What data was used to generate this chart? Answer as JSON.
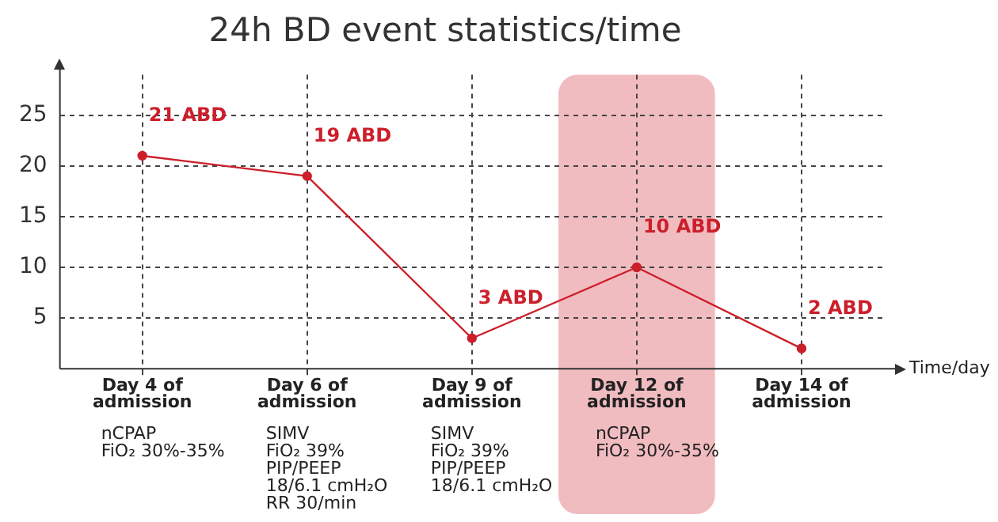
{
  "chart_data": {
    "type": "line",
    "title": "24h BD event statistics/time",
    "xlabel": "Time/day",
    "categories": [
      "Day 4 of admission",
      "Day 6 of admission",
      "Day 9 of admission",
      "Day 12 of admission",
      "Day 14 of admission"
    ],
    "series": [
      {
        "color": "#cc1f2b",
        "values": [
          21,
          19,
          3,
          10,
          2
        ],
        "value_labels": [
          "21 ABD",
          "19 ABD",
          "3 ABD",
          "10 ABD",
          "2 ABD"
        ]
      }
    ],
    "ylim": [
      0,
      29
    ],
    "yticks": [
      5,
      10,
      15,
      20,
      25
    ],
    "grid": true,
    "marker": "circle",
    "line_style": "solid",
    "bands": [
      {
        "axis": "x",
        "from": "Day 12 of admission",
        "to": "Day 12 of admission",
        "color": "#eeb0b5"
      }
    ],
    "annotations": [
      "nCPAP\nFiO₂ 30%-35%",
      "SIMV\nFiO₂ 39%\nPIP/PEEP\n18/6.1 cmH₂O\nRR 30/min",
      "SIMV\nFiO₂ 39%\nPIP/PEEP\n18/6.1 cmH₂O",
      "nCPAP\nFiO₂ 30%-35%"
    ]
  }
}
